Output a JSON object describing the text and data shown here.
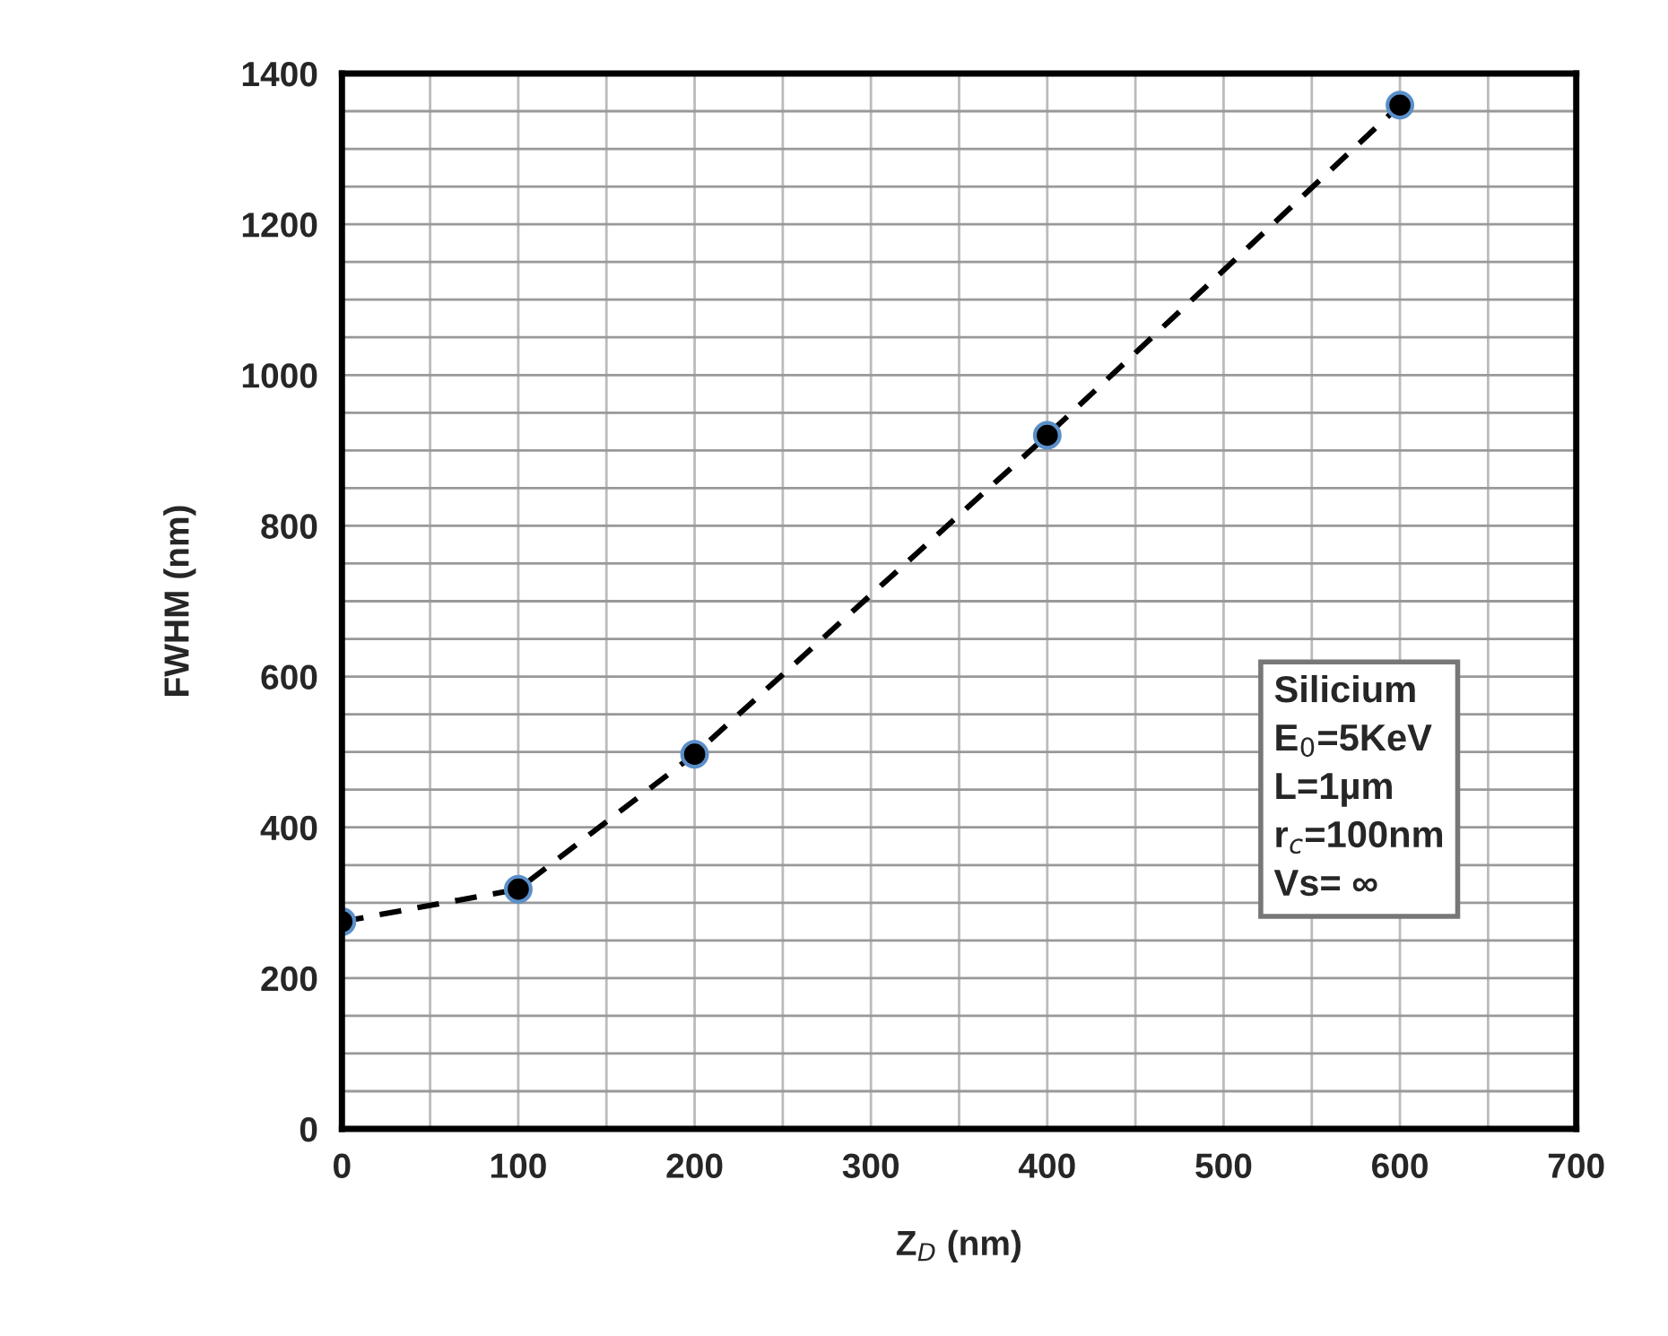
{
  "chart_data": {
    "type": "line",
    "xlabel": "Z$_{D}$ (nm)",
    "ylabel": "FWHM (nm)",
    "x": [
      0,
      100,
      200,
      400,
      600
    ],
    "series": [
      {
        "color": "#000000",
        "values": [
          275,
          318,
          497,
          920,
          1358
        ]
      }
    ],
    "xlim": [
      0,
      700
    ],
    "xticks": [
      0,
      100,
      200,
      300,
      400,
      500,
      600,
      700
    ],
    "ylim": [
      0,
      1400
    ],
    "yticks": [
      0,
      200,
      400,
      600,
      800,
      1000,
      1200,
      1400
    ],
    "grid": true,
    "marker": "circle",
    "line_style": "dashed",
    "legend": false,
    "annotations": [
      "Silicium",
      "E$_{0}$=5KeV",
      "L=1µm",
      "r$_{c}$=100nm",
      "Vs= ∞"
    ]
  }
}
